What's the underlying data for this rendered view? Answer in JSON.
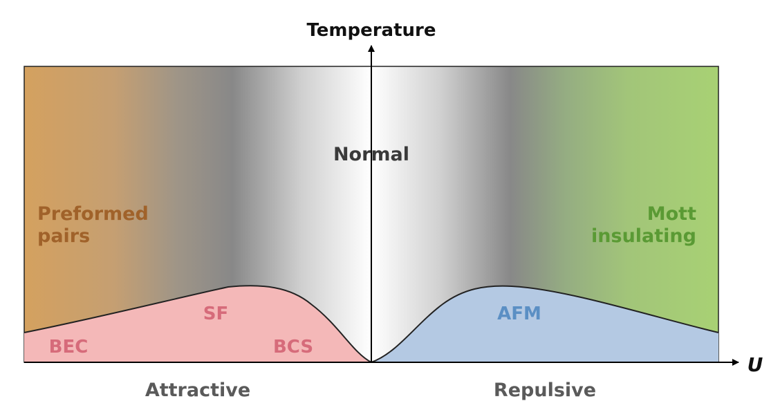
{
  "axes": {
    "y_label": "Temperature",
    "x_label": "U",
    "x_left_label": "Attractive",
    "x_right_label": "Repulsive"
  },
  "regions": {
    "normal": "Normal",
    "preformed_line1": "Preformed",
    "preformed_line2": "pairs",
    "mott_line1": "Mott",
    "mott_line2": "insulating",
    "sf": "SF",
    "bec": "BEC",
    "bcs": "BCS",
    "afm": "AFM"
  },
  "colors": {
    "preformed": "#d4a15f",
    "mott": "#a5cf78",
    "sf_fill": "#f4b8b8",
    "sf_text": "#d66b7a",
    "afm_fill": "#b4c9e3",
    "afm_text": "#5b8fc4",
    "preformed_text": "#a0622a",
    "mott_text": "#5a9a34",
    "axis_text": "#5a5a5a"
  }
}
